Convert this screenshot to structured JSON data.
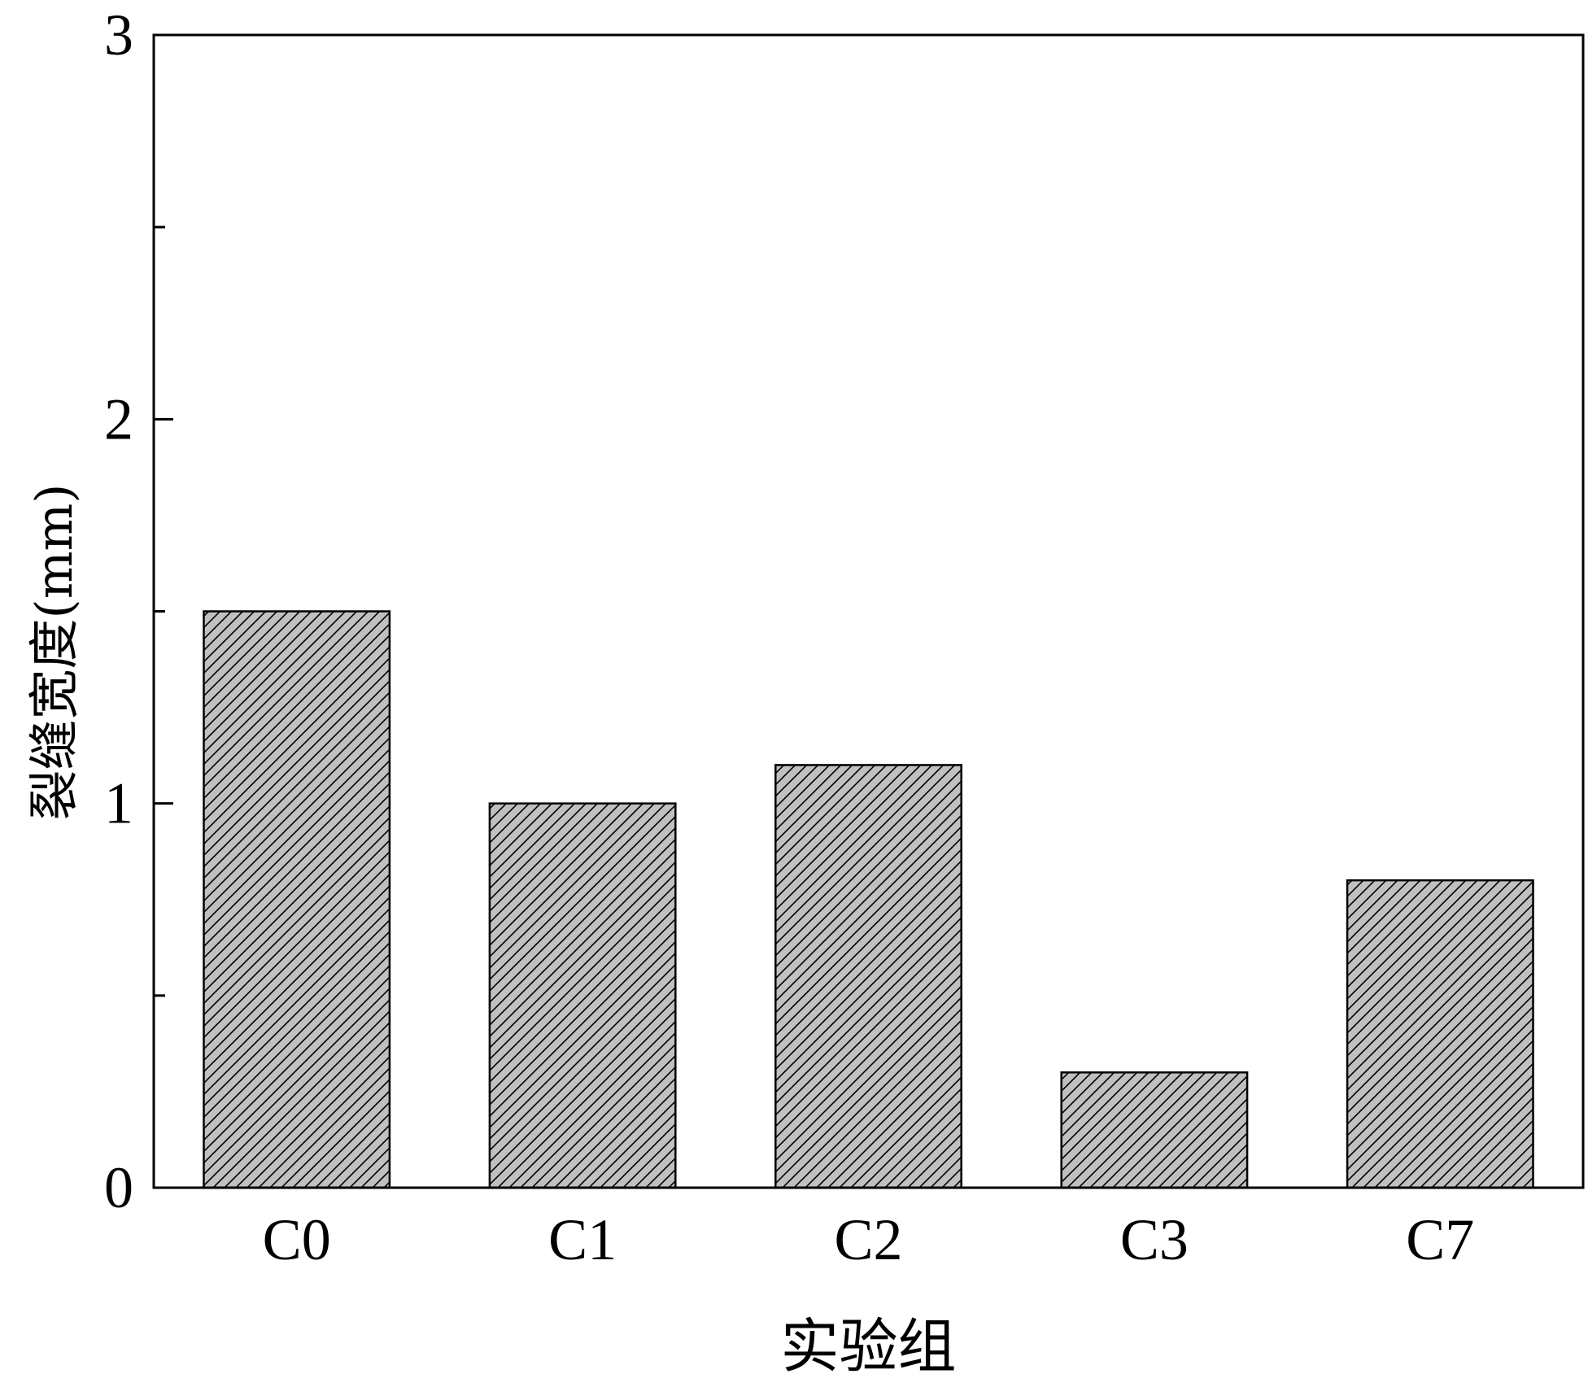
{
  "chart_data": {
    "type": "bar",
    "categories": [
      "C0",
      "C1",
      "C2",
      "C3",
      "C7"
    ],
    "values": [
      1.5,
      1.0,
      1.1,
      0.3,
      0.8
    ],
    "xlabel": "实验组",
    "ylabel": "裂缝宽度(mm)",
    "ylim": [
      0,
      3
    ],
    "yticks": [
      0,
      1,
      2,
      3
    ],
    "ytick_labels": [
      "0",
      "1",
      "2",
      "3"
    ],
    "grid": false,
    "legend": "none",
    "bar_fill": "#c0c0c0",
    "bar_hatch": "diagonal",
    "bar_edge_color": "#000000"
  }
}
